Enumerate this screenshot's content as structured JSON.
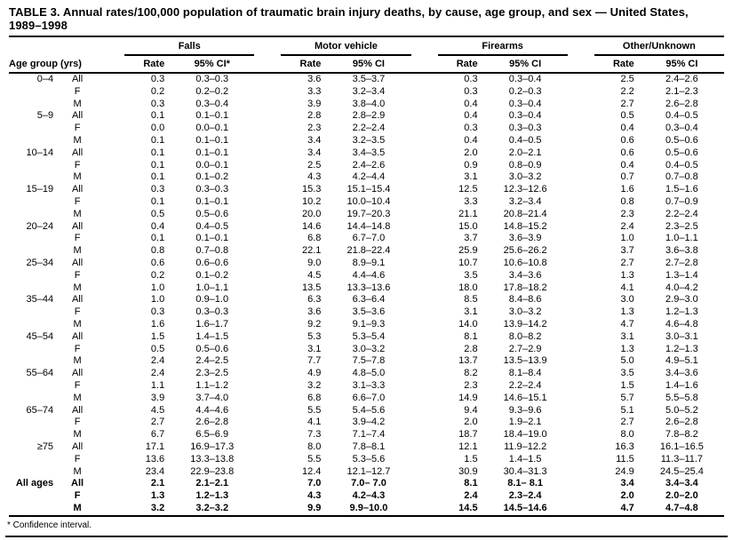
{
  "title": "TABLE 3. Annual rates/100,000 population of traumatic brain injury deaths, by cause, age group, and sex — United States, 1989–1998",
  "footnote": "* Confidence interval.",
  "table": {
    "row_header": "Age group (yrs)",
    "groups": [
      {
        "label": "Falls",
        "rate_header": "Rate",
        "ci_header": "95% CI*"
      },
      {
        "label": "Motor vehicle",
        "rate_header": "Rate",
        "ci_header": "95% CI"
      },
      {
        "label": "Firearms",
        "rate_header": "Rate",
        "ci_header": "95% CI"
      },
      {
        "label": "Other/Unknown",
        "rate_header": "Rate",
        "ci_header": "95% CI"
      }
    ],
    "rows": [
      {
        "age": "0–4",
        "sex": "All",
        "bold": false,
        "values": [
          "0.3",
          "0.3–0.3",
          "3.6",
          "3.5–3.7",
          "0.3",
          "0.3–0.4",
          "2.5",
          "2.4–2.6"
        ]
      },
      {
        "age": "",
        "sex": "F",
        "bold": false,
        "values": [
          "0.2",
          "0.2–0.2",
          "3.3",
          "3.2–3.4",
          "0.3",
          "0.2–0.3",
          "2.2",
          "2.1–2.3"
        ]
      },
      {
        "age": "",
        "sex": "M",
        "bold": false,
        "values": [
          "0.3",
          "0.3–0.4",
          "3.9",
          "3.8–4.0",
          "0.4",
          "0.3–0.4",
          "2.7",
          "2.6–2.8"
        ]
      },
      {
        "age": "5–9",
        "sex": "All",
        "bold": false,
        "values": [
          "0.1",
          "0.1–0.1",
          "2.8",
          "2.8–2.9",
          "0.4",
          "0.3–0.4",
          "0.5",
          "0.4–0.5"
        ]
      },
      {
        "age": "",
        "sex": "F",
        "bold": false,
        "values": [
          "0.0",
          "0.0–0.1",
          "2.3",
          "2.2–2.4",
          "0.3",
          "0.3–0.3",
          "0.4",
          "0.3–0.4"
        ]
      },
      {
        "age": "",
        "sex": "M",
        "bold": false,
        "values": [
          "0.1",
          "0.1–0.1",
          "3.4",
          "3.2–3.5",
          "0.4",
          "0.4–0.5",
          "0.6",
          "0.5–0.6"
        ]
      },
      {
        "age": "10–14",
        "sex": "All",
        "bold": false,
        "values": [
          "0.1",
          "0.1–0.1",
          "3.4",
          "3.4–3.5",
          "2.0",
          "2.0–2.1",
          "0.6",
          "0.5–0.6"
        ]
      },
      {
        "age": "",
        "sex": "F",
        "bold": false,
        "values": [
          "0.1",
          "0.0–0.1",
          "2.5",
          "2.4–2.6",
          "0.9",
          "0.8–0.9",
          "0.4",
          "0.4–0.5"
        ]
      },
      {
        "age": "",
        "sex": "M",
        "bold": false,
        "values": [
          "0.1",
          "0.1–0.2",
          "4.3",
          "4.2–4.4",
          "3.1",
          "3.0–3.2",
          "0.7",
          "0.7–0.8"
        ]
      },
      {
        "age": "15–19",
        "sex": "All",
        "bold": false,
        "values": [
          "0.3",
          "0.3–0.3",
          "15.3",
          "15.1–15.4",
          "12.5",
          "12.3–12.6",
          "1.6",
          "1.5–1.6"
        ]
      },
      {
        "age": "",
        "sex": "F",
        "bold": false,
        "values": [
          "0.1",
          "0.1–0.1",
          "10.2",
          "10.0–10.4",
          "3.3",
          "3.2–3.4",
          "0.8",
          "0.7–0.9"
        ]
      },
      {
        "age": "",
        "sex": "M",
        "bold": false,
        "values": [
          "0.5",
          "0.5–0.6",
          "20.0",
          "19.7–20.3",
          "21.1",
          "20.8–21.4",
          "2.3",
          "2.2–2.4"
        ]
      },
      {
        "age": "20–24",
        "sex": "All",
        "bold": false,
        "values": [
          "0.4",
          "0.4–0.5",
          "14.6",
          "14.4–14.8",
          "15.0",
          "14.8–15.2",
          "2.4",
          "2.3–2.5"
        ]
      },
      {
        "age": "",
        "sex": "F",
        "bold": false,
        "values": [
          "0.1",
          "0.1–0.1",
          "6.8",
          "6.7–7.0",
          "3.7",
          "3.6–3.9",
          "1.0",
          "1.0–1.1"
        ]
      },
      {
        "age": "",
        "sex": "M",
        "bold": false,
        "values": [
          "0.8",
          "0.7–0.8",
          "22.1",
          "21.8–22.4",
          "25.9",
          "25.6–26.2",
          "3.7",
          "3.6–3.8"
        ]
      },
      {
        "age": "25–34",
        "sex": "All",
        "bold": false,
        "values": [
          "0.6",
          "0.6–0.6",
          "9.0",
          "8.9–9.1",
          "10.7",
          "10.6–10.8",
          "2.7",
          "2.7–2.8"
        ]
      },
      {
        "age": "",
        "sex": "F",
        "bold": false,
        "values": [
          "0.2",
          "0.1–0.2",
          "4.5",
          "4.4–4.6",
          "3.5",
          "3.4–3.6",
          "1.3",
          "1.3–1.4"
        ]
      },
      {
        "age": "",
        "sex": "M",
        "bold": false,
        "values": [
          "1.0",
          "1.0–1.1",
          "13.5",
          "13.3–13.6",
          "18.0",
          "17.8–18.2",
          "4.1",
          "4.0–4.2"
        ]
      },
      {
        "age": "35–44",
        "sex": "All",
        "bold": false,
        "values": [
          "1.0",
          "0.9–1.0",
          "6.3",
          "6.3–6.4",
          "8.5",
          "8.4–8.6",
          "3.0",
          "2.9–3.0"
        ]
      },
      {
        "age": "",
        "sex": "F",
        "bold": false,
        "values": [
          "0.3",
          "0.3–0.3",
          "3.6",
          "3.5–3.6",
          "3.1",
          "3.0–3.2",
          "1.3",
          "1.2–1.3"
        ]
      },
      {
        "age": "",
        "sex": "M",
        "bold": false,
        "values": [
          "1.6",
          "1.6–1.7",
          "9.2",
          "9.1–9.3",
          "14.0",
          "13.9–14.2",
          "4.7",
          "4.6–4.8"
        ]
      },
      {
        "age": "45–54",
        "sex": "All",
        "bold": false,
        "values": [
          "1.5",
          "1.4–1.5",
          "5.3",
          "5.3–5.4",
          "8.1",
          "8.0–8.2",
          "3.1",
          "3.0–3.1"
        ]
      },
      {
        "age": "",
        "sex": "F",
        "bold": false,
        "values": [
          "0.5",
          "0.5–0.6",
          "3.1",
          "3.0–3.2",
          "2.8",
          "2.7–2.9",
          "1.3",
          "1.2–1.3"
        ]
      },
      {
        "age": "",
        "sex": "M",
        "bold": false,
        "values": [
          "2.4",
          "2.4–2.5",
          "7.7",
          "7.5–7.8",
          "13.7",
          "13.5–13.9",
          "5.0",
          "4.9–5.1"
        ]
      },
      {
        "age": "55–64",
        "sex": "All",
        "bold": false,
        "values": [
          "2.4",
          "2.3–2.5",
          "4.9",
          "4.8–5.0",
          "8.2",
          "8.1–8.4",
          "3.5",
          "3.4–3.6"
        ]
      },
      {
        "age": "",
        "sex": "F",
        "bold": false,
        "values": [
          "1.1",
          "1.1–1.2",
          "3.2",
          "3.1–3.3",
          "2.3",
          "2.2–2.4",
          "1.5",
          "1.4–1.6"
        ]
      },
      {
        "age": "",
        "sex": "M",
        "bold": false,
        "values": [
          "3.9",
          "3.7–4.0",
          "6.8",
          "6.6–7.0",
          "14.9",
          "14.6–15.1",
          "5.7",
          "5.5–5.8"
        ]
      },
      {
        "age": "65–74",
        "sex": "All",
        "bold": false,
        "values": [
          "4.5",
          "4.4–4.6",
          "5.5",
          "5.4–5.6",
          "9.4",
          "9.3–9.6",
          "5.1",
          "5.0–5.2"
        ]
      },
      {
        "age": "",
        "sex": "F",
        "bold": false,
        "values": [
          "2.7",
          "2.6–2.8",
          "4.1",
          "3.9–4.2",
          "2.0",
          "1.9–2.1",
          "2.7",
          "2.6–2.8"
        ]
      },
      {
        "age": "",
        "sex": "M",
        "bold": false,
        "values": [
          "6.7",
          "6.5–6.9",
          "7.3",
          "7.1–7.4",
          "18.7",
          "18.4–19.0",
          "8.0",
          "7.8–8.2"
        ]
      },
      {
        "age": "≥75",
        "sex": "All",
        "bold": false,
        "values": [
          "17.1",
          "16.9–17.3",
          "8.0",
          "7.8–8.1",
          "12.1",
          "11.9–12.2",
          "16.3",
          "16.1–16.5"
        ]
      },
      {
        "age": "",
        "sex": "F",
        "bold": false,
        "values": [
          "13.6",
          "13.3–13.8",
          "5.5",
          "5.3–5.6",
          "1.5",
          "1.4–1.5",
          "11.5",
          "11.3–11.7"
        ]
      },
      {
        "age": "",
        "sex": "M",
        "bold": false,
        "values": [
          "23.4",
          "22.9–23.8",
          "12.4",
          "12.1–12.7",
          "30.9",
          "30.4–31.3",
          "24.9",
          "24.5–25.4"
        ]
      },
      {
        "age": "All ages",
        "sex": "All",
        "bold": true,
        "values": [
          "2.1",
          "2.1–2.1",
          "7.0",
          "7.0– 7.0",
          "8.1",
          "8.1– 8.1",
          "3.4",
          "3.4–3.4"
        ]
      },
      {
        "age": "",
        "sex": "F",
        "bold": true,
        "values": [
          "1.3",
          "1.2–1.3",
          "4.3",
          "4.2–4.3",
          "2.4",
          "2.3–2.4",
          "2.0",
          "2.0–2.0"
        ]
      },
      {
        "age": "",
        "sex": "M",
        "bold": true,
        "values": [
          "3.2",
          "3.2–3.2",
          "9.9",
          "9.9–10.0",
          "14.5",
          "14.5–14.6",
          "4.7",
          "4.7–4.8"
        ]
      }
    ]
  }
}
